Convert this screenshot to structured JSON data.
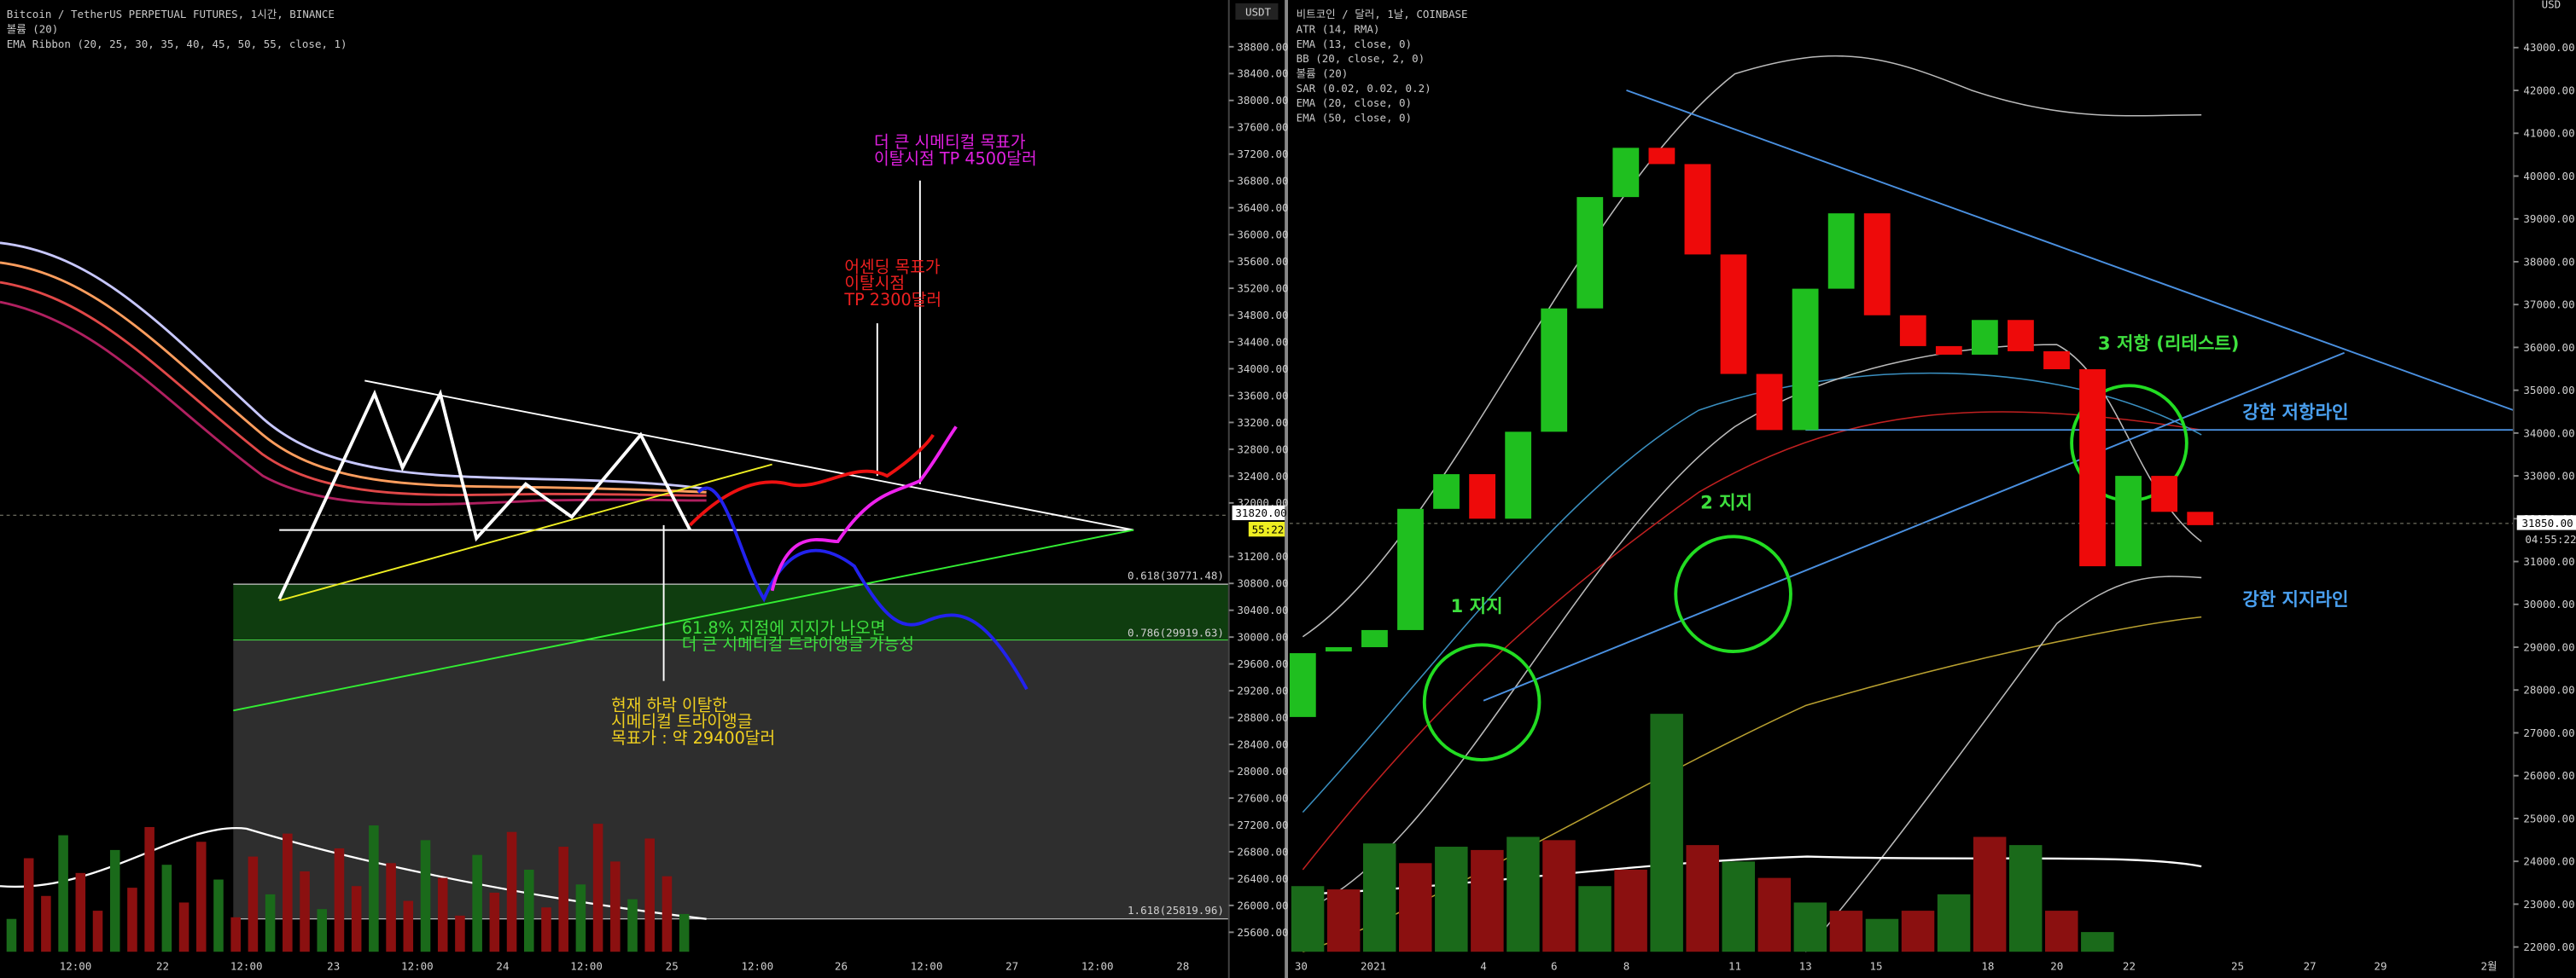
{
  "left_panel": {
    "header": [
      "Bitcoin / TetherUS PERPETUAL FUTURES, 1시간, BINANCE",
      "볼륨 (20)",
      "EMA Ribbon (20, 25, 30, 35, 40, 45, 50, 55, close, 1)"
    ],
    "axis_unit": "USDT",
    "price_ticks": [
      {
        "value": 38800,
        "label": "38800.00"
      },
      {
        "value": 38400,
        "label": "38400.00"
      },
      {
        "value": 38000,
        "label": "38000.00"
      },
      {
        "value": 37600,
        "label": "37600.00"
      },
      {
        "value": 37200,
        "label": "37200.00"
      },
      {
        "value": 36800,
        "label": "36800.00"
      },
      {
        "value": 36400,
        "label": "36400.00"
      },
      {
        "value": 36000,
        "label": "36000.00"
      },
      {
        "value": 35600,
        "label": "35600.00"
      },
      {
        "value": 35200,
        "label": "35200.00"
      },
      {
        "value": 34800,
        "label": "34800.00"
      },
      {
        "value": 34400,
        "label": "34400.00"
      },
      {
        "value": 34000,
        "label": "34000.00"
      },
      {
        "value": 33600,
        "label": "33600.00"
      },
      {
        "value": 33200,
        "label": "33200.00"
      },
      {
        "value": 32800,
        "label": "32800.00"
      },
      {
        "value": 32400,
        "label": "32400.00"
      },
      {
        "value": 32000,
        "label": "32000.00"
      },
      {
        "value": 31200,
        "label": "31200.00"
      },
      {
        "value": 30800,
        "label": "30800.00"
      },
      {
        "value": 30400,
        "label": "30400.00"
      },
      {
        "value": 30000,
        "label": "30000.00"
      },
      {
        "value": 29600,
        "label": "29600.00"
      },
      {
        "value": 29200,
        "label": "29200.00"
      },
      {
        "value": 28800,
        "label": "28800.00"
      },
      {
        "value": 28400,
        "label": "28400.00"
      },
      {
        "value": 28000,
        "label": "28000.00"
      },
      {
        "value": 27600,
        "label": "27600.00"
      },
      {
        "value": 27200,
        "label": "27200.00"
      },
      {
        "value": 26800,
        "label": "26800.00"
      },
      {
        "value": 26400,
        "label": "26400.00"
      },
      {
        "value": 26000,
        "label": "26000.00"
      },
      {
        "value": 25600,
        "label": "25600.00"
      }
    ],
    "time_labels": [
      "12:00",
      "22",
      "12:00",
      "23",
      "12:00",
      "24",
      "12:00",
      "25",
      "12:00",
      "26",
      "12:00",
      "27",
      "12:00",
      "28"
    ],
    "fib_labels": [
      "0.618(30771.48)",
      "0.786(29919.63)",
      "1.618(25819.96)"
    ],
    "annotations": [
      {
        "lines": [
          "더 큰 시메티컬 목표가",
          "이탈시점 TP 4500달러"
        ]
      },
      {
        "lines": [
          "어센딩 목표가",
          "이탈시점",
          "TP 2300달러"
        ]
      },
      {
        "lines": [
          "61.8% 지점에 지지가 나오면",
          "더 큰 시메티컬 트라이앵글 가능성"
        ]
      },
      {
        "lines": [
          "현재 하락 이탈한",
          "시메티컬 트라이앵글",
          "목표가 : 약 29400달러"
        ]
      }
    ],
    "price_badge": "31820.00",
    "countdown": "55:22"
  },
  "right_panel": {
    "header": [
      "비트코인 / 달러, 1날, COINBASE",
      "ATR (14, RMA)",
      "EMA (13, close, 0)",
      "BB (20, close, 2, 0)",
      "볼륨 (20)",
      "SAR (0.02, 0.02, 0.2)",
      "EMA (20, close, 0)",
      "EMA (50, close, 0)"
    ],
    "axis_unit": "USD",
    "price_ticks": [
      {
        "value": 43000,
        "label": "43000.00"
      },
      {
        "value": 42000,
        "label": "42000.00"
      },
      {
        "value": 41000,
        "label": "41000.00"
      },
      {
        "value": 40000,
        "label": "40000.00"
      },
      {
        "value": 39000,
        "label": "39000.00"
      },
      {
        "value": 38000,
        "label": "38000.00"
      },
      {
        "value": 37000,
        "label": "37000.00"
      },
      {
        "value": 36000,
        "label": "36000.00"
      },
      {
        "value": 35000,
        "label": "35000.00"
      },
      {
        "value": 34000,
        "label": "34000.00"
      },
      {
        "value": 33000,
        "label": "33000.00"
      },
      {
        "value": 32000,
        "label": "32000.00"
      },
      {
        "value": 31000,
        "label": "31000.00"
      },
      {
        "value": 30000,
        "label": "30000.00"
      },
      {
        "value": 29000,
        "label": "29000.00"
      },
      {
        "value": 28000,
        "label": "28000.00"
      },
      {
        "value": 27000,
        "label": "27000.00"
      },
      {
        "value": 26000,
        "label": "26000.00"
      },
      {
        "value": 25000,
        "label": "25000.00"
      },
      {
        "value": 24000,
        "label": "24000.00"
      },
      {
        "value": 23000,
        "label": "23000.00"
      },
      {
        "value": 22000,
        "label": "22000.00"
      }
    ],
    "time_labels": [
      "30",
      "2021",
      "4",
      "6",
      "8",
      "11",
      "13",
      "15",
      "18",
      "20",
      "22",
      "25",
      "27",
      "29",
      "2월"
    ],
    "candles": {
      "type": "candlestick",
      "open": [
        27370,
        28900,
        29000,
        29400,
        32230,
        33040,
        32000,
        34030,
        36910,
        39510,
        40660,
        40280,
        38170,
        35380,
        34070,
        37370,
        39130,
        36750,
        36030,
        35830,
        36640,
        35910,
        35490,
        30890,
        33000,
        32160
      ],
      "close": [
        28860,
        29000,
        29400,
        32230,
        33040,
        32000,
        34030,
        36910,
        39510,
        40660,
        40280,
        38170,
        35380,
        34070,
        37370,
        39130,
        36750,
        36030,
        35830,
        36640,
        35910,
        35490,
        30890,
        33000,
        32160,
        31850
      ]
    },
    "annotations": [
      "3 저항 (리테스트)",
      "강한 저항라인",
      "2 지지",
      "1 지지",
      "강한 지지라인"
    ],
    "price_badge": "31850.00",
    "countdown": "04:55:22"
  }
}
